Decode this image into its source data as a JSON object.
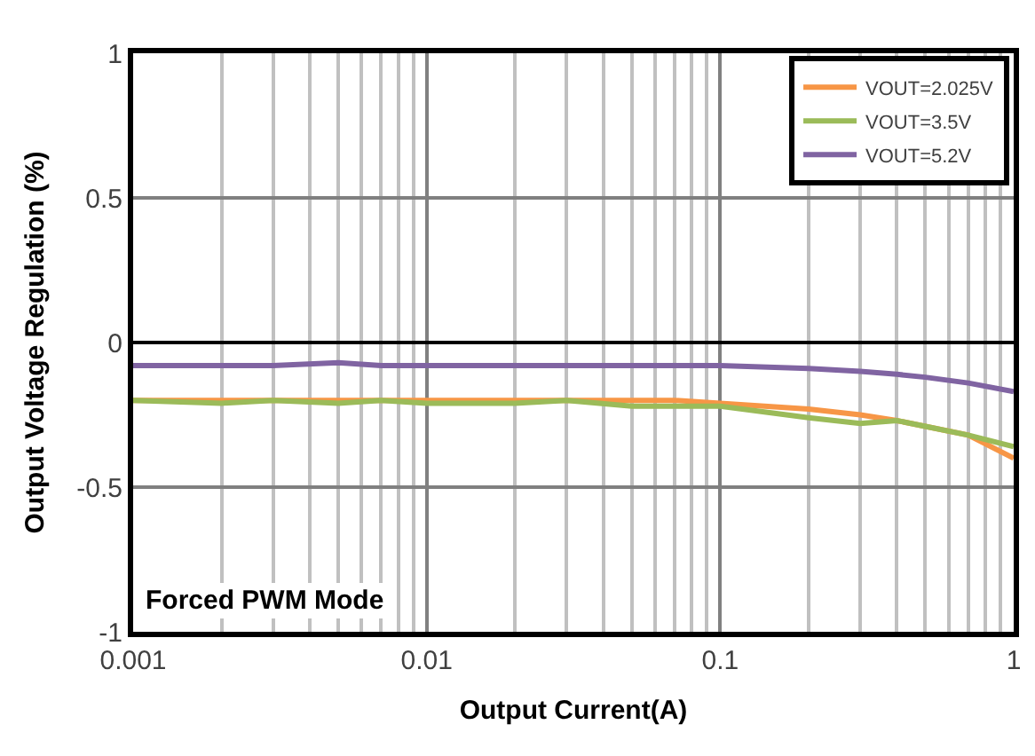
{
  "chart_data": {
    "type": "line",
    "xlabel": "Output Current(A)",
    "ylabel": "Output Voltage Regulation (%)",
    "x": [
      0.001,
      0.002,
      0.003,
      0.005,
      0.007,
      0.01,
      0.02,
      0.03,
      0.05,
      0.07,
      0.1,
      0.2,
      0.3,
      0.4,
      0.5,
      0.7,
      1
    ],
    "series": [
      {
        "name": "VOUT=2.025V",
        "color": "#f79646",
        "values": [
          -0.2,
          -0.2,
          -0.2,
          -0.2,
          -0.2,
          -0.2,
          -0.2,
          -0.2,
          -0.2,
          -0.2,
          -0.21,
          -0.23,
          -0.25,
          -0.27,
          -0.29,
          -0.32,
          -0.4
        ]
      },
      {
        "name": "VOUT=3.5V",
        "color": "#9bbb59",
        "values": [
          -0.2,
          -0.21,
          -0.2,
          -0.21,
          -0.2,
          -0.21,
          -0.21,
          -0.2,
          -0.22,
          -0.22,
          -0.22,
          -0.26,
          -0.28,
          -0.27,
          -0.29,
          -0.32,
          -0.36
        ]
      },
      {
        "name": "VOUT=5.2V",
        "color": "#8064a2",
        "values": [
          -0.08,
          -0.08,
          -0.08,
          -0.07,
          -0.08,
          -0.08,
          -0.08,
          -0.08,
          -0.08,
          -0.08,
          -0.08,
          -0.09,
          -0.1,
          -0.11,
          -0.12,
          -0.14,
          -0.17
        ]
      }
    ],
    "log": "x",
    "xlim": [
      0.001,
      1
    ],
    "xticks": [
      0.001,
      0.01,
      0.1,
      1
    ],
    "ylim": [
      -1,
      1
    ],
    "yticks": [
      -1,
      -0.5,
      0,
      0.5,
      1
    ],
    "ref_lines": [
      {
        "axis": "y",
        "value": 0,
        "color": "#000000"
      }
    ],
    "annotations": [
      "Forced PWM Mode"
    ],
    "grid": true,
    "legend": "top right",
    "marker": "none",
    "line_style": "solid"
  }
}
